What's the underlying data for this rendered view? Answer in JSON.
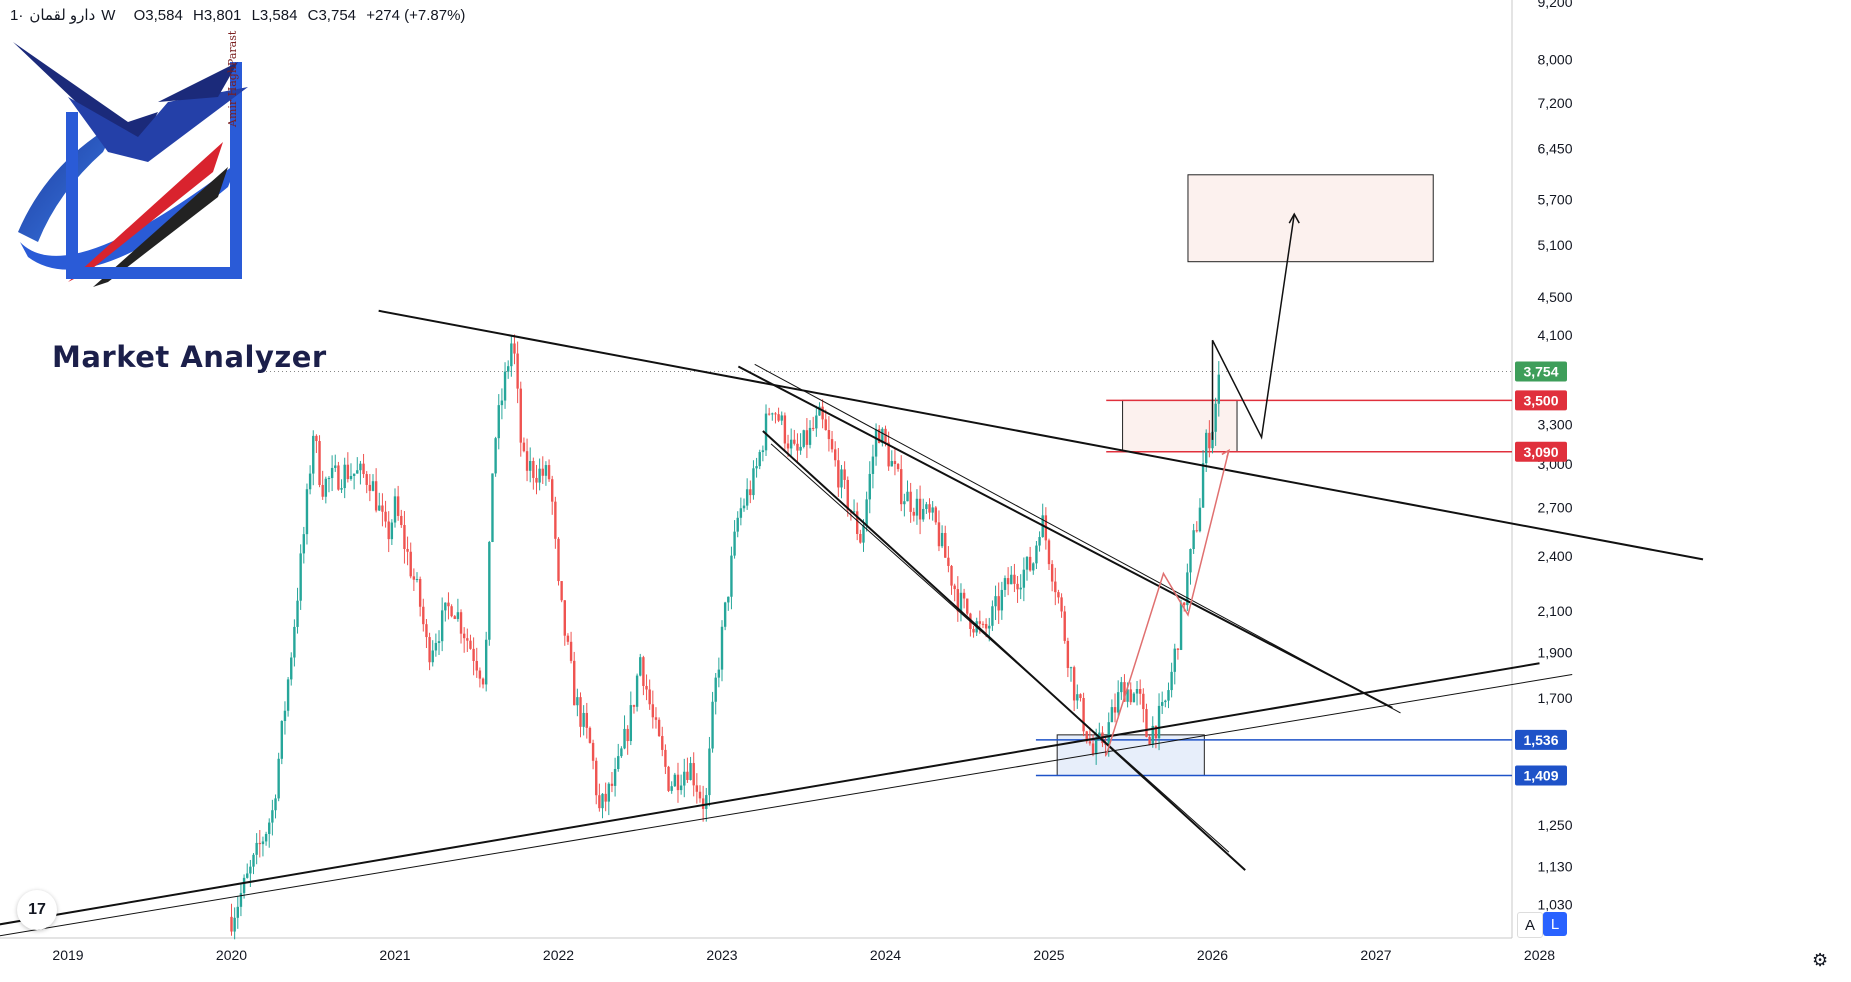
{
  "header": {
    "symbol": "دارو لقمان",
    "separator": "·",
    "interval": "1W",
    "open_label": "O",
    "open": "3,584",
    "high_label": "H",
    "high": "3,801",
    "low_label": "L",
    "low": "3,584",
    "close_label": "C",
    "close": "3,754",
    "change": "+274 (+7.87%)"
  },
  "logo": {
    "title": "Market Analyzer",
    "signature": "Amir HaghParast"
  },
  "toolbar": {
    "tv_logo": "17",
    "auto_scale": "A",
    "log_scale": "L",
    "settings_icon": "gear-icon"
  },
  "colors": {
    "up": "#26a69a",
    "down": "#ef5350",
    "red_level": "#e0303c",
    "blue_level": "#1e52c8",
    "current_price": "#3e9e5a"
  },
  "chart_data": {
    "type": "candlestick",
    "scale": "log",
    "ylim": [
      950,
      9200
    ],
    "xlim": [
      2018.8,
      2028.8
    ],
    "y_ticks": [
      9200,
      8000,
      7200,
      6450,
      5700,
      5100,
      4500,
      4100,
      3300,
      3000,
      2700,
      2400,
      2100,
      1900,
      1700,
      1250,
      1130,
      1030
    ],
    "y_tick_labels": [
      "9,200",
      "8,000",
      "7,200",
      "6,450",
      "5,700",
      "5,100",
      "4,500",
      "4,100",
      "3,300",
      "3,000",
      "2,700",
      "2,400",
      "2,100",
      "1,900",
      "1,700",
      "1,250",
      "1,130",
      "1,030"
    ],
    "x_ticks": [
      2019,
      2020,
      2021,
      2022,
      2023,
      2024,
      2025,
      2026,
      2027,
      2028
    ],
    "x_tick_labels": [
      "2019",
      "2020",
      "2021",
      "2022",
      "2023",
      "2024",
      "2025",
      "2026",
      "2027",
      "2028"
    ],
    "price_anchors": [
      [
        2020.0,
        1000
      ],
      [
        2020.12,
        1120
      ],
      [
        2020.25,
        1290
      ],
      [
        2020.35,
        1800
      ],
      [
        2020.45,
        2600
      ],
      [
        2020.5,
        3250
      ],
      [
        2020.55,
        2850
      ],
      [
        2020.7,
        2950
      ],
      [
        2020.85,
        2900
      ],
      [
        2020.95,
        2500
      ],
      [
        2021.0,
        2700
      ],
      [
        2021.15,
        2150
      ],
      [
        2021.2,
        1900
      ],
      [
        2021.35,
        2150
      ],
      [
        2021.45,
        1950
      ],
      [
        2021.55,
        1780
      ],
      [
        2021.6,
        3100
      ],
      [
        2021.72,
        4100
      ],
      [
        2021.78,
        3000
      ],
      [
        2021.95,
        2900
      ],
      [
        2022.0,
        2200
      ],
      [
        2022.1,
        1700
      ],
      [
        2022.2,
        1500
      ],
      [
        2022.25,
        1290
      ],
      [
        2022.35,
        1400
      ],
      [
        2022.45,
        1650
      ],
      [
        2022.5,
        1880
      ],
      [
        2022.58,
        1600
      ],
      [
        2022.68,
        1380
      ],
      [
        2022.8,
        1450
      ],
      [
        2022.9,
        1300
      ],
      [
        2022.95,
        1700
      ],
      [
        2023.05,
        2300
      ],
      [
        2023.1,
        2650
      ],
      [
        2023.2,
        2900
      ],
      [
        2023.3,
        3500
      ],
      [
        2023.45,
        3050
      ],
      [
        2023.6,
        3350
      ],
      [
        2023.75,
        2800
      ],
      [
        2023.85,
        2500
      ],
      [
        2023.95,
        3300
      ],
      [
        2024.1,
        2800
      ],
      [
        2024.3,
        2600
      ],
      [
        2024.45,
        2150
      ],
      [
        2024.6,
        1980
      ],
      [
        2024.75,
        2250
      ],
      [
        2024.9,
        2350
      ],
      [
        2024.95,
        2650
      ],
      [
        2025.05,
        2200
      ],
      [
        2025.15,
        1750
      ],
      [
        2025.27,
        1480
      ],
      [
        2025.35,
        1560
      ],
      [
        2025.45,
        1750
      ],
      [
        2025.55,
        1700
      ],
      [
        2025.6,
        1550
      ],
      [
        2025.7,
        1640
      ],
      [
        2025.75,
        1800
      ],
      [
        2025.85,
        2300
      ],
      [
        2025.92,
        2700
      ],
      [
        2025.95,
        3100
      ],
      [
        2026.0,
        3300
      ],
      [
        2026.05,
        3754
      ]
    ],
    "levels": [
      {
        "label": "3,500",
        "value": 3500,
        "color": "red"
      },
      {
        "label": "3,090",
        "value": 3090,
        "color": "red"
      },
      {
        "label": "1,536",
        "value": 1536,
        "color": "blue"
      },
      {
        "label": "1,409",
        "value": 1409,
        "color": "blue"
      }
    ],
    "current_price": {
      "label": "3,754",
      "value": 3754
    },
    "trendlines": [
      {
        "name": "upper-resistance",
        "points": [
          [
            2020.9,
            4350
          ],
          [
            2029.0,
            2380
          ]
        ]
      },
      {
        "name": "lower-support",
        "points": [
          [
            2018.4,
            970
          ],
          [
            2028.0,
            1850
          ]
        ]
      },
      {
        "name": "lower-support-thin",
        "points": [
          [
            2018.5,
            950
          ],
          [
            2028.2,
            1800
          ]
        ]
      },
      {
        "name": "channel-upper",
        "points": [
          [
            2023.1,
            3800
          ],
          [
            2027.1,
            1660
          ]
        ]
      },
      {
        "name": "channel-upper-2",
        "points": [
          [
            2023.2,
            3820
          ],
          [
            2027.15,
            1640
          ]
        ]
      },
      {
        "name": "channel-lower",
        "points": [
          [
            2023.25,
            3250
          ],
          [
            2026.2,
            1120
          ]
        ]
      },
      {
        "name": "channel-lower-2",
        "points": [
          [
            2023.3,
            3150
          ],
          [
            2026.1,
            1170
          ]
        ]
      }
    ],
    "zones": [
      {
        "name": "target-zone",
        "x": [
          2025.85,
          2027.35
        ],
        "y": [
          4900,
          6050
        ]
      },
      {
        "name": "resistance-zone",
        "x": [
          2025.45,
          2026.15
        ],
        "y": [
          3090,
          3500
        ]
      },
      {
        "name": "support-zone",
        "x": [
          2025.05,
          2025.95
        ],
        "y": [
          1409,
          1555
        ]
      }
    ],
    "projection_black": [
      [
        2026.0,
        3180
      ],
      [
        2026.0,
        4050
      ],
      [
        2026.3,
        3200
      ],
      [
        2026.5,
        5500
      ]
    ],
    "projection_red": [
      [
        2025.35,
        1480
      ],
      [
        2025.7,
        2300
      ],
      [
        2025.85,
        2080
      ],
      [
        2026.1,
        3100
      ]
    ]
  }
}
